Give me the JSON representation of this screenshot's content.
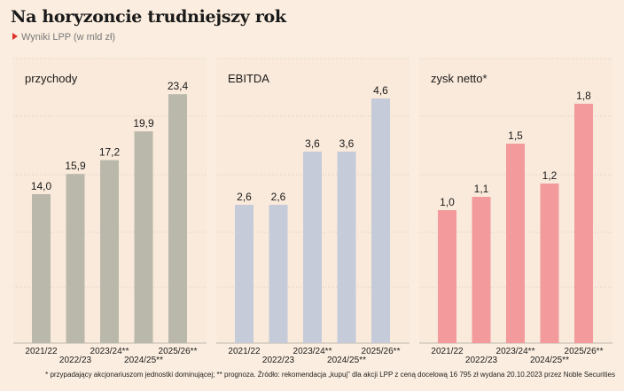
{
  "title": "Na horyzoncie trudniejszy rok",
  "subtitle": "Wyniki LPP (w mld zł)",
  "footnote": "* przypadający akcjonariuszom jednostki dominującej; ** prognoza. Źródło: rekomendacja „kupuj” dla akcji LPP z ceną docelową 16 795 zł wydana 20.10.2023 przez Noble Securities",
  "colors": {
    "background": "#fbeee0",
    "przychody": "#b9b8ab",
    "ebitda": "#c6cbd9",
    "zysk": "#f39a9c",
    "accent": "#e0312b"
  },
  "chart_data": [
    {
      "type": "bar",
      "title": "przychody",
      "categories": [
        "2021/22",
        "2022/23",
        "2023/24**",
        "2024/25**",
        "2025/26**"
      ],
      "values": [
        14.0,
        15.9,
        17.2,
        19.9,
        23.4
      ],
      "labels": [
        "14,0",
        "15,9",
        "17,2",
        "19,9",
        "23,4"
      ],
      "ylim": [
        0,
        25
      ],
      "grid": true
    },
    {
      "type": "bar",
      "title": "EBITDA",
      "categories": [
        "2021/22",
        "2022/23",
        "2023/24**",
        "2024/25**",
        "2025/26**"
      ],
      "values": [
        2.6,
        2.6,
        3.6,
        3.6,
        4.6
      ],
      "labels": [
        "2,6",
        "2,6",
        "3,6",
        "3,6",
        "4,6"
      ],
      "ylim": [
        0,
        5
      ],
      "grid": true
    },
    {
      "type": "bar",
      "title": "zysk netto*",
      "categories": [
        "2021/22",
        "2022/23",
        "2023/24**",
        "2024/25**",
        "2025/26**"
      ],
      "values": [
        1.0,
        1.1,
        1.5,
        1.2,
        1.8
      ],
      "labels": [
        "1,0",
        "1,1",
        "1,5",
        "1,2",
        "1,8"
      ],
      "ylim": [
        0,
        2
      ],
      "grid": true
    }
  ]
}
